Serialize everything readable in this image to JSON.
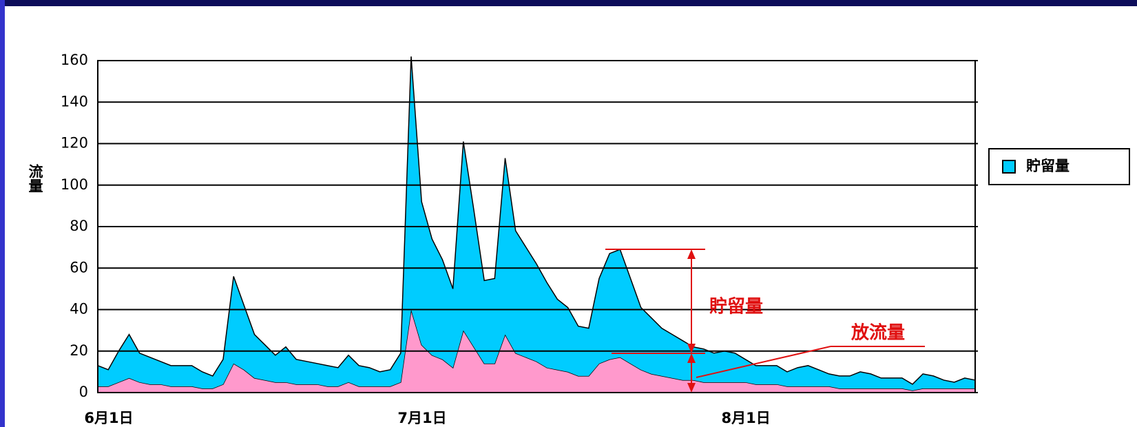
{
  "chart_data": {
    "type": "stacked_area",
    "y_label": "流量",
    "categories": [
      "6月1日",
      null,
      null,
      null,
      null,
      null,
      null,
      null,
      null,
      null,
      null,
      null,
      null,
      null,
      null,
      null,
      null,
      null,
      null,
      null,
      null,
      null,
      null,
      null,
      null,
      null,
      null,
      null,
      null,
      null,
      "7月1日",
      null,
      null,
      null,
      null,
      null,
      null,
      null,
      null,
      null,
      null,
      null,
      null,
      null,
      null,
      null,
      null,
      null,
      null,
      null,
      null,
      null,
      null,
      null,
      null,
      null,
      null,
      null,
      null,
      null,
      null,
      "8月1日",
      null,
      null,
      null,
      null,
      null,
      null,
      null,
      null,
      null,
      null,
      null,
      null,
      null,
      null,
      null,
      null,
      null,
      null,
      null,
      null,
      null,
      null,
      null
    ],
    "series": [
      {
        "color": "#ff99cc",
        "values": [
          3,
          3,
          5,
          7,
          5,
          4,
          4,
          3,
          3,
          3,
          2,
          2,
          4,
          14,
          11,
          7,
          6,
          5,
          5,
          4,
          4,
          4,
          3,
          3,
          5,
          3,
          3,
          3,
          3,
          5,
          40,
          23,
          18,
          16,
          12,
          30,
          22,
          14,
          14,
          28,
          19,
          17,
          15,
          12,
          11,
          10,
          8,
          8,
          14,
          16,
          17,
          14,
          11,
          9,
          8,
          7,
          6,
          6,
          5,
          5,
          5,
          5,
          5,
          4,
          4,
          4,
          3,
          3,
          3,
          3,
          3,
          2,
          2,
          2,
          2,
          2,
          2,
          2,
          1,
          2,
          2,
          2,
          2,
          2,
          2
        ]
      },
      {
        "name": "貯留量",
        "color": "#00ccff",
        "values": [
          10,
          8,
          15,
          21,
          14,
          13,
          11,
          10,
          10,
          10,
          8,
          6,
          12,
          42,
          31,
          21,
          17,
          13,
          17,
          12,
          11,
          10,
          10,
          9,
          13,
          10,
          9,
          7,
          8,
          14,
          122,
          69,
          56,
          48,
          38,
          91,
          66,
          40,
          41,
          85,
          59,
          53,
          47,
          41,
          34,
          31,
          24,
          23,
          41,
          51,
          52,
          41,
          30,
          27,
          23,
          21,
          19,
          16,
          16,
          14,
          15,
          14,
          11,
          9,
          9,
          9,
          7,
          9,
          10,
          8,
          6,
          6,
          6,
          8,
          7,
          5,
          5,
          5,
          3,
          7,
          6,
          4,
          3,
          5,
          4
        ]
      }
    ],
    "ylim": [
      0,
      160
    ],
    "yticks": [
      0,
      20,
      40,
      60,
      80,
      100,
      120,
      140,
      160
    ],
    "grid": true,
    "legend": "right",
    "annotations": [
      "貯留量",
      "放流量"
    ]
  }
}
